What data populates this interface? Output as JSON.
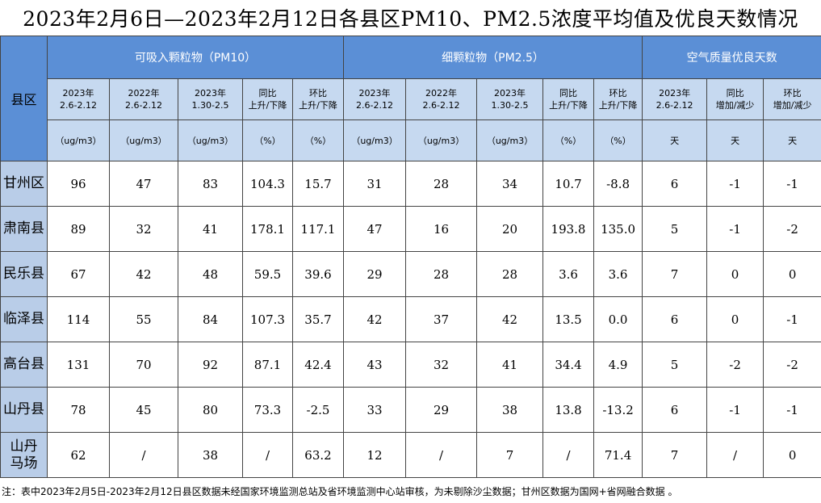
{
  "title": "2023年2月6日—2023年2月12日各县区PM10、PM2.5浓度平均值及优良天数情况",
  "table": {
    "corner": "县区",
    "groups": [
      "可吸入颗粒物（PM10）",
      "细颗粒物（PM2.5）",
      "空气质量优良天数"
    ],
    "subheaders": [
      "2023年\n2.6-2.12",
      "2022年\n2.6-2.12",
      "2023年\n1.30-2.5",
      "同比\n上升/下降",
      "环比\n上升/下降",
      "2023年\n2.6-2.12",
      "2022年\n2.6-2.12",
      "2023年\n1.30-2.5",
      "同比\n上升/下降",
      "环比\n上升/下降",
      "2023年\n2.6-2.12",
      "同比\n增加/减少",
      "环比\n增加/减少"
    ],
    "units": [
      "（ug/m3）",
      "（ug/m3）",
      "（ug/m3）",
      "（%）",
      "（%）",
      "（ug/m3）",
      "（ug/m3）",
      "（ug/m3）",
      "（%）",
      "（%）",
      "天",
      "天",
      "天"
    ],
    "rows": [
      [
        "甘州区",
        "96",
        "47",
        "83",
        "104.3",
        "15.7",
        "31",
        "28",
        "34",
        "10.7",
        "-8.8",
        "6",
        "-1",
        "-1"
      ],
      [
        "肃南县",
        "89",
        "32",
        "41",
        "178.1",
        "117.1",
        "47",
        "16",
        "20",
        "193.8",
        "135.0",
        "5",
        "-1",
        "-2"
      ],
      [
        "民乐县",
        "67",
        "42",
        "48",
        "59.5",
        "39.6",
        "29",
        "28",
        "28",
        "3.6",
        "3.6",
        "7",
        "0",
        "0"
      ],
      [
        "临泽县",
        "114",
        "55",
        "84",
        "107.3",
        "35.7",
        "42",
        "37",
        "42",
        "13.5",
        "0.0",
        "6",
        "0",
        "-1"
      ],
      [
        "高台县",
        "131",
        "70",
        "92",
        "87.1",
        "42.4",
        "43",
        "32",
        "41",
        "34.4",
        "4.9",
        "5",
        "-2",
        "-2"
      ],
      [
        "山丹县",
        "78",
        "45",
        "80",
        "73.3",
        "-2.5",
        "33",
        "29",
        "38",
        "13.8",
        "-13.2",
        "6",
        "-1",
        "-1"
      ],
      [
        "山丹\n马场",
        "62",
        "/",
        "38",
        "/",
        "63.2",
        "12",
        "/",
        "7",
        "/",
        "71.4",
        "7",
        "/",
        "0"
      ]
    ]
  },
  "note": "注：表中2023年2月5日-2023年2月12日县区数据未经国家环境监测总站及省环境监测中心站审核，为未剔除沙尘数据；甘州区数据为国网+省网融合数据 。"
}
